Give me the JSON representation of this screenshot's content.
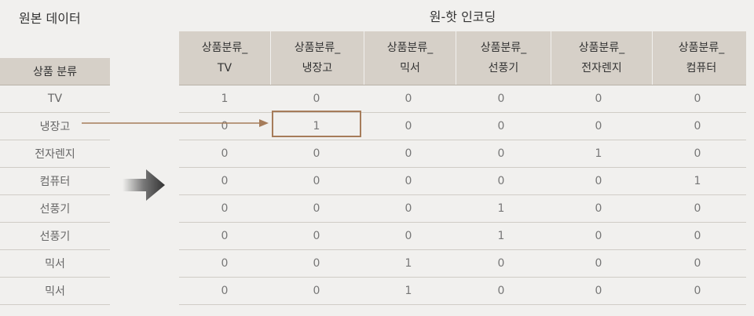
{
  "titles": {
    "original": "원본 데이터",
    "encoded": "원-핫 인코딩"
  },
  "left_table": {
    "header": "상품 분류",
    "rows": [
      "TV",
      "냉장고",
      "전자렌지",
      "컴퓨터",
      "선풍기",
      "선풍기",
      "믹서",
      "믹서"
    ]
  },
  "right_table": {
    "headers": [
      {
        "line1": "상품분류_",
        "line2": "TV"
      },
      {
        "line1": "상품분류_",
        "line2": "냉장고"
      },
      {
        "line1": "상품분류_",
        "line2": "믹서"
      },
      {
        "line1": "상품분류_",
        "line2": "선풍기"
      },
      {
        "line1": "상품분류_",
        "line2": "전자렌지"
      },
      {
        "line1": "상품분류_",
        "line2": "컴퓨터"
      }
    ],
    "rows": [
      [
        "1",
        "0",
        "0",
        "0",
        "0",
        "0"
      ],
      [
        "0",
        "1",
        "0",
        "0",
        "0",
        "0"
      ],
      [
        "0",
        "0",
        "0",
        "0",
        "1",
        "0"
      ],
      [
        "0",
        "0",
        "0",
        "0",
        "0",
        "1"
      ],
      [
        "0",
        "0",
        "0",
        "1",
        "0",
        "0"
      ],
      [
        "0",
        "0",
        "0",
        "1",
        "0",
        "0"
      ],
      [
        "0",
        "0",
        "1",
        "0",
        "0",
        "0"
      ],
      [
        "0",
        "0",
        "1",
        "0",
        "0",
        "0"
      ]
    ]
  },
  "colors": {
    "header_bg": "#d6d0c8",
    "highlight": "#a67c5a",
    "arrow": "#555555"
  }
}
